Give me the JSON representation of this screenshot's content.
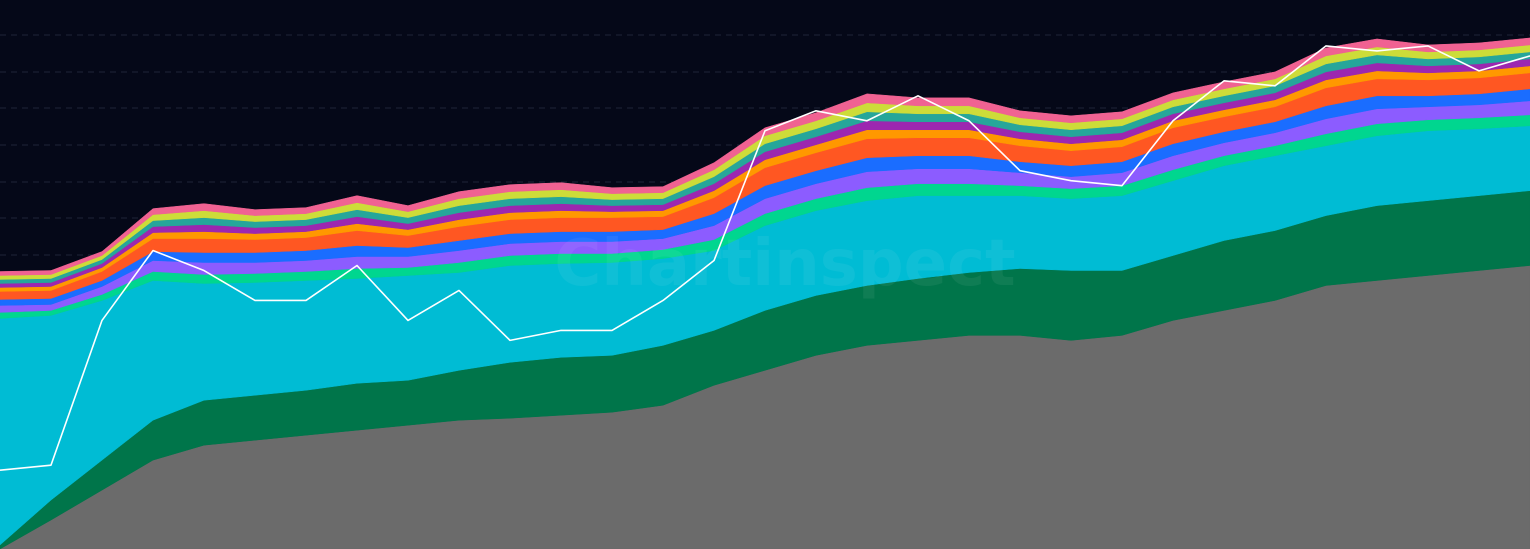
{
  "chart_data": {
    "type": "stacked_area",
    "watermark": "Chartinspect",
    "background": "#050818",
    "x": [
      0,
      1,
      2,
      3,
      4,
      5,
      6,
      7,
      8,
      9,
      10,
      11,
      12,
      13,
      14,
      15,
      16,
      17,
      18,
      19,
      20,
      21,
      22,
      23,
      24,
      25,
      26,
      27,
      28,
      29,
      30
    ],
    "xlim": [
      0,
      30
    ],
    "ylim": [
      0,
      550
    ],
    "series": [
      {
        "color": "#6b6b6b",
        "values": [
          0,
          29,
          59,
          89,
          104,
          109,
          114,
          119,
          124,
          129,
          131,
          134,
          137,
          144,
          164,
          179,
          194,
          204,
          209,
          214,
          214,
          209,
          214,
          229,
          239,
          249,
          264,
          269,
          274,
          279,
          284
        ]
      },
      {
        "color": "#00754a",
        "values": [
          4,
          20,
          30,
          40,
          45,
          45,
          45,
          47,
          45,
          50,
          56,
          58,
          57,
          60,
          55,
          60,
          60,
          60,
          62,
          63,
          67,
          70,
          65,
          65,
          70,
          70,
          70,
          75,
          75,
          75,
          75
        ]
      },
      {
        "color": "#00bcd4",
        "values": [
          227,
          185,
          160,
          140,
          117,
          113,
          110,
          105,
          105,
          98,
          97,
          94,
          93,
          87,
          80,
          85,
          85,
          85,
          83,
          77,
          73,
          72,
          75,
          75,
          75,
          75,
          70,
          70,
          70,
          67,
          65
        ]
      },
      {
        "color": "#00d68f",
        "values": [
          6,
          5,
          6,
          9,
          9,
          9,
          9,
          10,
          8,
          10,
          10,
          10,
          9,
          9,
          11,
          12,
          12,
          13,
          12,
          12,
          10,
          10,
          10,
          11,
          10,
          10,
          12,
          12,
          11,
          11,
          11
        ]
      },
      {
        "color": "#8c5cff",
        "values": [
          7,
          6,
          8,
          11,
          12,
          11,
          11,
          12,
          11,
          12,
          12,
          12,
          12,
          11,
          14,
          15,
          15,
          16,
          15,
          15,
          13,
          12,
          13,
          14,
          13,
          13,
          15,
          15,
          13,
          13,
          14
        ]
      },
      {
        "color": "#1a6dff",
        "values": [
          6,
          6,
          6,
          9,
          10,
          10,
          10,
          11,
          9,
          10,
          10,
          10,
          10,
          9,
          12,
          13,
          13,
          14,
          13,
          13,
          11,
          11,
          11,
          12,
          11,
          11,
          13,
          13,
          11,
          11,
          12
        ]
      },
      {
        "color": "#ff5722",
        "values": [
          8,
          8,
          9,
          13,
          14,
          13,
          13,
          15,
          12,
          14,
          14,
          14,
          14,
          13,
          16,
          18,
          18,
          19,
          18,
          18,
          16,
          15,
          15,
          16,
          15,
          15,
          18,
          17,
          16,
          16,
          16
        ]
      },
      {
        "color": "#ff9800",
        "values": [
          4,
          4,
          4,
          6,
          7,
          6,
          6,
          7,
          6,
          7,
          7,
          7,
          6,
          6,
          7,
          8,
          8,
          9,
          8,
          8,
          7,
          7,
          7,
          7,
          7,
          7,
          8,
          8,
          7,
          7,
          7
        ]
      },
      {
        "color": "#9c27b0",
        "values": [
          4,
          4,
          4,
          6,
          7,
          6,
          6,
          7,
          6,
          7,
          7,
          7,
          6,
          6,
          7,
          8,
          8,
          9,
          8,
          8,
          7,
          7,
          7,
          7,
          7,
          7,
          8,
          8,
          7,
          7,
          7
        ]
      },
      {
        "color": "#26a69a",
        "values": [
          4,
          4,
          4,
          6,
          7,
          6,
          6,
          7,
          6,
          7,
          7,
          7,
          6,
          6,
          7,
          8,
          8,
          9,
          8,
          8,
          7,
          7,
          7,
          7,
          7,
          7,
          8,
          8,
          7,
          7,
          7
        ]
      },
      {
        "color": "#cddc39",
        "values": [
          4,
          4,
          4,
          6,
          7,
          6,
          6,
          7,
          6,
          7,
          7,
          7,
          6,
          6,
          7,
          8,
          8,
          9,
          8,
          8,
          7,
          7,
          7,
          7,
          7,
          7,
          8,
          8,
          7,
          7,
          7
        ]
      },
      {
        "color": "#f06292",
        "values": [
          4,
          4,
          4,
          6,
          7,
          6,
          6,
          7,
          6,
          7,
          7,
          7,
          6,
          6,
          7,
          8,
          8,
          9,
          8,
          8,
          7,
          7,
          7,
          7,
          7,
          7,
          8,
          8,
          7,
          7,
          7
        ]
      }
    ],
    "line": {
      "color": "#ffffff",
      "values": [
        79,
        84,
        229,
        299,
        279,
        249,
        249,
        284,
        229,
        259,
        209,
        219,
        219,
        249,
        289,
        419,
        439,
        429,
        454,
        429,
        379,
        369,
        364,
        429,
        469,
        464,
        504,
        499,
        504,
        479,
        494
      ]
    }
  }
}
